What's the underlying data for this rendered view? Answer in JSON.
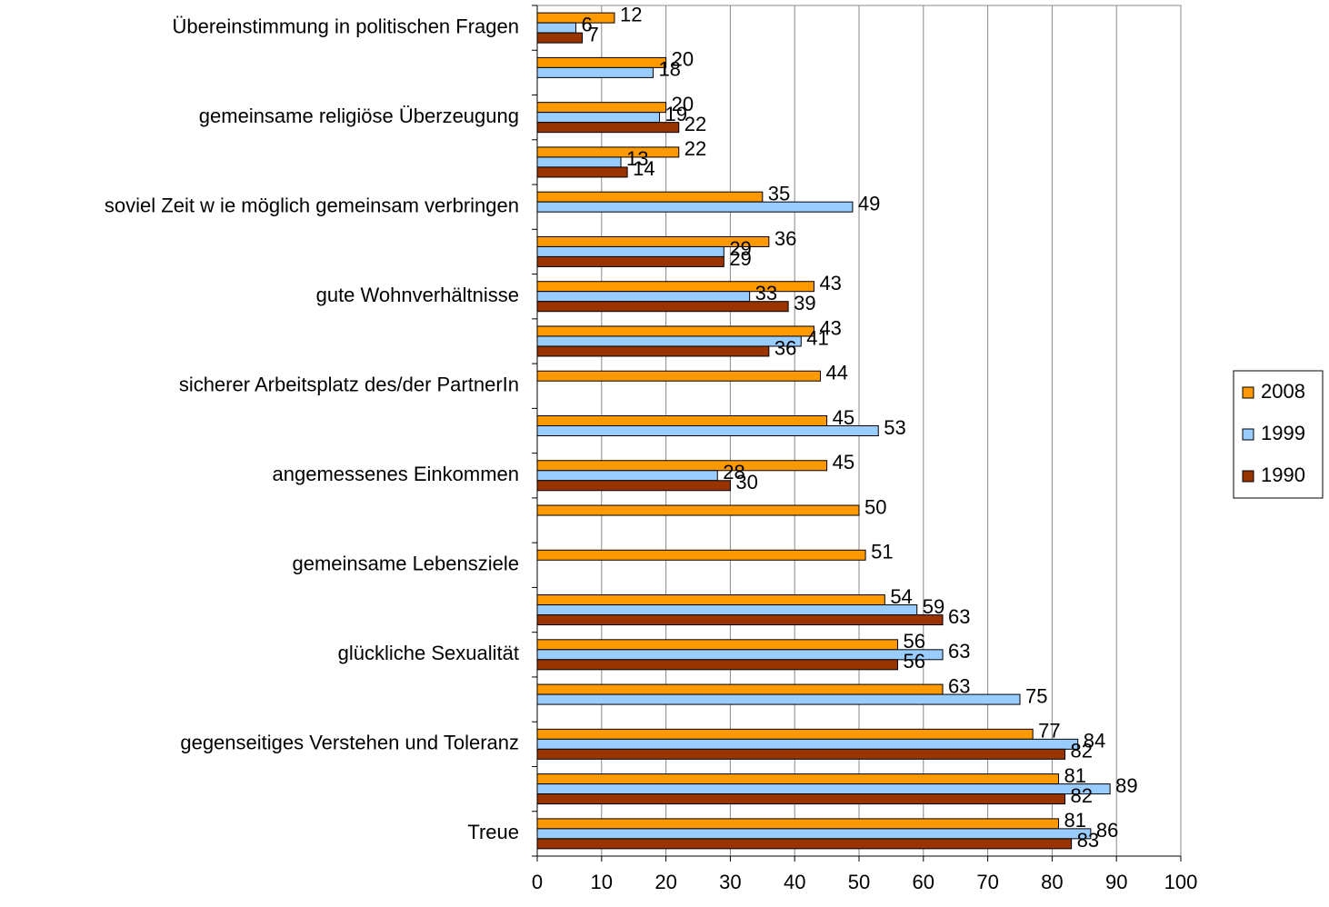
{
  "chart_data": {
    "type": "bar",
    "orientation": "horizontal",
    "categories": [
      "Übereinstimmung in politischen Fragen",
      null,
      "gemeinsame religiöse Überzeugung",
      null,
      "soviel Zeit w ie möglich gemeinsam verbringen",
      null,
      "gute Wohnverhältnisse",
      null,
      "sicherer Arbeitsplatz des/der PartnerIn",
      null,
      "angemessenes Einkommen",
      null,
      "gemeinsame Lebensziele",
      null,
      "glückliche Sexualität",
      null,
      "gegenseitiges Verstehen und Toleranz",
      null,
      "Treue"
    ],
    "series": [
      {
        "name": "2008",
        "color": "#ff9900",
        "values": [
          12,
          20,
          20,
          22,
          35,
          36,
          43,
          43,
          44,
          45,
          45,
          50,
          51,
          54,
          56,
          63,
          77,
          81,
          81
        ]
      },
      {
        "name": "1999",
        "color": "#99ccff",
        "values": [
          6,
          18,
          19,
          13,
          49,
          29,
          33,
          41,
          null,
          53,
          28,
          null,
          null,
          59,
          63,
          75,
          84,
          89,
          86
        ]
      },
      {
        "name": "1990",
        "color": "#993300",
        "values": [
          7,
          null,
          22,
          14,
          null,
          29,
          39,
          36,
          null,
          null,
          30,
          null,
          null,
          63,
          56,
          null,
          82,
          82,
          83
        ]
      }
    ],
    "xlim": [
      0,
      100
    ],
    "xticks": [
      0,
      10,
      20,
      30,
      40,
      50,
      60,
      70,
      80,
      90,
      100
    ],
    "grid": true,
    "legend": "right"
  }
}
